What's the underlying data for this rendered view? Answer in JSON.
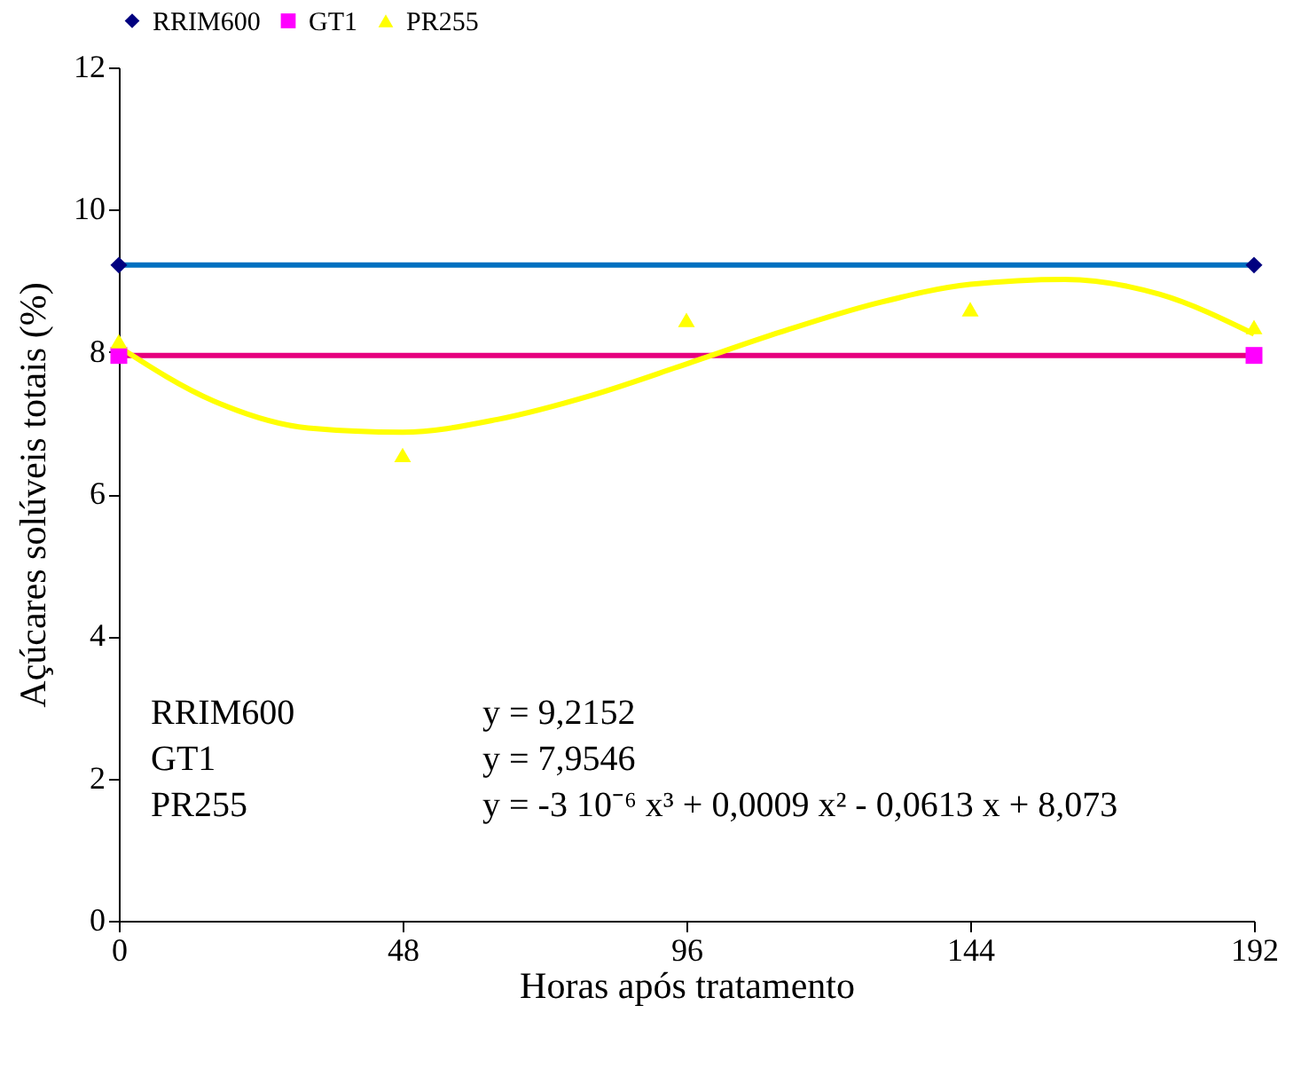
{
  "chart_data": {
    "type": "scatter",
    "xlabel": "Horas após tratamento",
    "ylabel": "Açúcares solúveis totais (%)",
    "xlim": [
      0,
      192
    ],
    "xticks": [
      0,
      48,
      96,
      144,
      192
    ],
    "ylim": [
      0,
      12
    ],
    "yticks": [
      0,
      2,
      4,
      6,
      8,
      10,
      12
    ],
    "grid": false,
    "legend": "top",
    "series": [
      {
        "name": "RRIM600",
        "marker": "diamond",
        "color": "#000080",
        "x": [
          0,
          192
        ],
        "values": [
          9.22,
          9.22
        ]
      },
      {
        "name": "GT1",
        "marker": "square",
        "color": "#ff00ff",
        "x": [
          0,
          192
        ],
        "values": [
          7.95,
          7.95
        ]
      },
      {
        "name": "PR255",
        "marker": "triangle",
        "color": "#ffff00",
        "x": [
          0,
          48,
          96,
          144,
          192
        ],
        "values": [
          8.15,
          6.55,
          8.45,
          8.6,
          8.35
        ]
      },
      {
        "type": "line",
        "color": "#0070c0",
        "x": [
          0,
          192
        ],
        "values": [
          9.22,
          9.22
        ]
      },
      {
        "type": "line",
        "color": "#e6007e",
        "x": [
          0,
          192
        ],
        "values": [
          7.95,
          7.95
        ]
      },
      {
        "type": "line",
        "color": "#ffff00",
        "x": [
          0,
          16,
          32,
          48,
          64,
          80,
          96,
          112,
          128,
          144,
          160,
          176,
          192
        ],
        "values": [
          8.07,
          7.31,
          6.93,
          6.87,
          7.05,
          7.39,
          7.83,
          8.28,
          8.68,
          8.95,
          9.02,
          8.81,
          8.25
        ]
      }
    ],
    "annotations": [
      "RRIM600",
      "y =  9,2152",
      "GT1",
      "y =  7,9546",
      "PR255",
      "y = -3 10⁻⁶ x³ + 0,0009 x² - 0,0613 x + 8,073"
    ]
  }
}
